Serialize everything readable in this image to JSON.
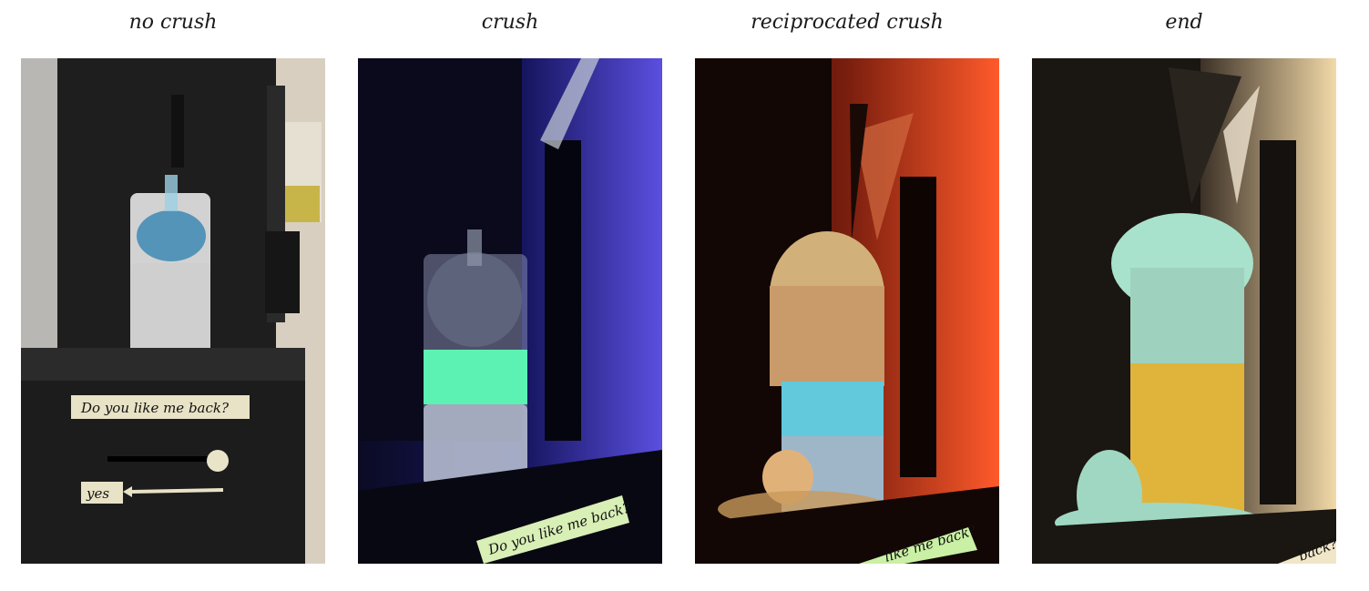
{
  "panels": [
    {
      "caption": "no crush",
      "sign_text": "Do you like me back?",
      "answer_text": "yes"
    },
    {
      "caption": "crush",
      "sign_text": "Do you like me back?"
    },
    {
      "caption": "reciprocated crush",
      "sign_text": "like me back?"
    },
    {
      "caption": "end",
      "sign_text": "back?"
    }
  ],
  "colors": {
    "background": "#ffffff",
    "caption_text": "#1a1a1a",
    "uv_glow": "#5cf2b4",
    "orange_light": "#ff5a2a",
    "foam_green": "#a8e2cc",
    "yellow_liquid": "#e0b43a"
  }
}
